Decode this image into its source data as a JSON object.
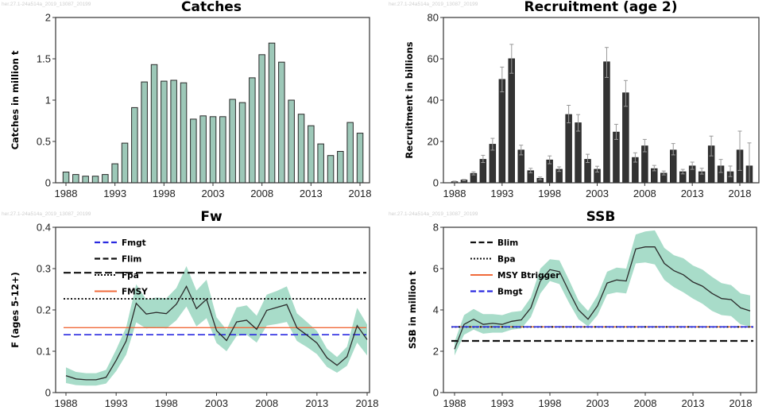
{
  "watermark": "her.27.1-24a514a_2019_13087_20199",
  "colors": {
    "bar_fill": "#9dc8b8",
    "bar_stroke": "#2a2a2a",
    "recruit_fill": "#333333",
    "error_bar": "#9a9a9a",
    "band_fill": "#a8dcc9",
    "line": "#2b2b2b",
    "blue": "#2a2ae0",
    "orange": "#f06a3a",
    "black": "#111111"
  },
  "chart_data": [
    {
      "id": "catches",
      "type": "bar",
      "title": "Catches",
      "xlabel": "",
      "ylabel": "Catches in million t",
      "ylim": [
        0,
        2
      ],
      "yticks": [
        "0",
        "0.5",
        "1",
        "1.5",
        "2"
      ],
      "ytick_values": [
        0,
        0.5,
        1,
        1.5,
        2
      ],
      "xticks": [
        "1988",
        "1993",
        "1998",
        "2003",
        "2008",
        "2013",
        "2018"
      ],
      "grid": false,
      "x": [
        1988,
        1989,
        1990,
        1991,
        1992,
        1993,
        1994,
        1995,
        1996,
        1997,
        1998,
        1999,
        2000,
        2001,
        2002,
        2003,
        2004,
        2005,
        2006,
        2007,
        2008,
        2009,
        2010,
        2011,
        2012,
        2013,
        2014,
        2015,
        2016,
        2017,
        2018
      ],
      "values": [
        0.13,
        0.1,
        0.08,
        0.08,
        0.1,
        0.23,
        0.48,
        0.91,
        1.22,
        1.43,
        1.23,
        1.24,
        1.21,
        0.77,
        0.81,
        0.8,
        0.8,
        1.01,
        0.97,
        1.27,
        1.55,
        1.69,
        1.46,
        1.0,
        0.83,
        0.69,
        0.47,
        0.33,
        0.38,
        0.73,
        0.6
      ]
    },
    {
      "id": "recruitment",
      "type": "bar",
      "title": "Recruitment (age 2)",
      "xlabel": "",
      "ylabel": "Recruitment in billions",
      "ylim": [
        0,
        80
      ],
      "yticks": [
        "0",
        "20",
        "40",
        "60",
        "80"
      ],
      "ytick_values": [
        0,
        20,
        40,
        60,
        80
      ],
      "xticks": [
        "1988",
        "1993",
        "1998",
        "2003",
        "2008",
        "2013",
        "2018"
      ],
      "grid": false,
      "x": [
        1988,
        1989,
        1990,
        1991,
        1992,
        1993,
        1994,
        1995,
        1996,
        1997,
        1998,
        1999,
        2000,
        2001,
        2002,
        2003,
        2004,
        2005,
        2006,
        2007,
        2008,
        2009,
        2010,
        2011,
        2012,
        2013,
        2014,
        2015,
        2016,
        2017,
        2018,
        2019
      ],
      "values": [
        0.5,
        1.3,
        4.5,
        11.3,
        18.6,
        50,
        60,
        15.8,
        5.8,
        2.1,
        11,
        6.5,
        33,
        29,
        11.3,
        6.5,
        58.5,
        24.5,
        43.5,
        12.2,
        17.8,
        6.8,
        4.6,
        15.8,
        5.3,
        8.1,
        5.3,
        17.8,
        8.1,
        5.3,
        15.8,
        8.1
      ],
      "low": [
        0.3,
        1.0,
        3.8,
        9.8,
        15.8,
        44,
        53,
        13.5,
        4.8,
        1.5,
        9.2,
        5.5,
        29,
        25,
        9.8,
        5.2,
        51,
        21,
        37,
        10,
        15,
        5.8,
        3.8,
        13.5,
        4.3,
        6.5,
        4.2,
        13,
        5,
        3,
        6,
        0
      ],
      "high": [
        0.8,
        1.6,
        5.3,
        13.3,
        21.5,
        56,
        67,
        18.2,
        7.0,
        2.8,
        13,
        7.7,
        37.5,
        33,
        13.8,
        8.0,
        65.5,
        28.3,
        49.5,
        14.5,
        21,
        8.4,
        5.7,
        19,
        6.5,
        10,
        7.0,
        22.6,
        11.3,
        8.1,
        25,
        19.3
      ]
    },
    {
      "id": "fw",
      "type": "line",
      "title": "Fw",
      "xlabel": "",
      "ylabel": "F (ages 5-12+)",
      "ylim": [
        0,
        0.4
      ],
      "yticks": [
        "0",
        "0.1",
        "0.2",
        "0.3",
        "0.4"
      ],
      "ytick_values": [
        0,
        0.1,
        0.2,
        0.3,
        0.4
      ],
      "xticks": [
        "1988",
        "1993",
        "1998",
        "2003",
        "2008",
        "2013",
        "2018"
      ],
      "grid": false,
      "legend_position": "top-left",
      "x": [
        1988,
        1989,
        1990,
        1991,
        1992,
        1993,
        1994,
        1995,
        1996,
        1997,
        1998,
        1999,
        2000,
        2001,
        2002,
        2003,
        2004,
        2005,
        2006,
        2007,
        2008,
        2009,
        2010,
        2011,
        2012,
        2013,
        2014,
        2015,
        2016,
        2017,
        2018
      ],
      "values": [
        0.041,
        0.033,
        0.031,
        0.031,
        0.037,
        0.078,
        0.125,
        0.216,
        0.19,
        0.194,
        0.191,
        0.214,
        0.257,
        0.203,
        0.226,
        0.15,
        0.126,
        0.171,
        0.175,
        0.153,
        0.199,
        0.206,
        0.213,
        0.157,
        0.139,
        0.12,
        0.084,
        0.066,
        0.087,
        0.162,
        0.128
      ],
      "low": [
        0.023,
        0.018,
        0.017,
        0.017,
        0.022,
        0.052,
        0.092,
        0.17,
        0.155,
        0.158,
        0.155,
        0.175,
        0.208,
        0.16,
        0.18,
        0.12,
        0.1,
        0.137,
        0.14,
        0.121,
        0.162,
        0.166,
        0.171,
        0.125,
        0.11,
        0.093,
        0.062,
        0.048,
        0.065,
        0.121,
        0.09
      ],
      "high": [
        0.061,
        0.05,
        0.047,
        0.047,
        0.055,
        0.104,
        0.158,
        0.262,
        0.225,
        0.23,
        0.228,
        0.253,
        0.306,
        0.247,
        0.273,
        0.182,
        0.152,
        0.206,
        0.211,
        0.186,
        0.237,
        0.246,
        0.257,
        0.192,
        0.171,
        0.149,
        0.106,
        0.086,
        0.111,
        0.205,
        0.165
      ],
      "reference_lines": [
        {
          "name": "Fmgt",
          "value": 0.14,
          "style": "dashed",
          "color": "#2a2ae0"
        },
        {
          "name": "Flim",
          "value": 0.29,
          "style": "dashed",
          "color": "#111111"
        },
        {
          "name": "Fpa",
          "value": 0.227,
          "style": "dotted",
          "color": "#111111"
        },
        {
          "name": "FMSY",
          "value": 0.157,
          "style": "solid",
          "color": "#f06a3a"
        }
      ]
    },
    {
      "id": "ssb",
      "type": "line",
      "title": "SSB",
      "xlabel": "",
      "ylabel": "SSB in million t",
      "ylim": [
        0,
        8
      ],
      "yticks": [
        "0",
        "2",
        "4",
        "6",
        "8"
      ],
      "ytick_values": [
        0,
        2,
        4,
        6,
        8
      ],
      "xticks": [
        "1988",
        "1993",
        "1998",
        "2003",
        "2008",
        "2013",
        "2018"
      ],
      "grid": false,
      "legend_position": "top-left",
      "x": [
        1988,
        1989,
        1990,
        1991,
        1992,
        1993,
        1994,
        1995,
        1996,
        1997,
        1998,
        1999,
        2000,
        2001,
        2002,
        2003,
        2004,
        2005,
        2006,
        2007,
        2008,
        2009,
        2010,
        2011,
        2012,
        2013,
        2014,
        2015,
        2016,
        2017,
        2018,
        2019
      ],
      "values": [
        2.1,
        3.3,
        3.55,
        3.3,
        3.35,
        3.3,
        3.45,
        3.52,
        4.1,
        5.4,
        5.95,
        5.85,
        4.9,
        4.0,
        3.55,
        4.2,
        5.3,
        5.45,
        5.4,
        6.95,
        7.05,
        7.05,
        6.25,
        5.9,
        5.7,
        5.35,
        5.15,
        4.8,
        4.55,
        4.5,
        4.1,
        3.95
      ],
      "low": [
        1.8,
        2.8,
        3.05,
        2.85,
        2.9,
        2.9,
        3.05,
        3.1,
        3.65,
        4.8,
        5.4,
        5.25,
        4.35,
        3.55,
        3.2,
        3.75,
        4.75,
        4.85,
        4.8,
        6.25,
        6.3,
        6.2,
        5.45,
        5.1,
        4.85,
        4.55,
        4.3,
        3.95,
        3.75,
        3.7,
        3.3,
        3.2
      ],
      "high": [
        2.45,
        3.75,
        4.05,
        3.8,
        3.8,
        3.75,
        3.9,
        3.95,
        4.6,
        6.0,
        6.45,
        6.4,
        5.45,
        4.45,
        3.95,
        4.7,
        5.85,
        6.05,
        6.0,
        7.65,
        7.8,
        7.85,
        7.0,
        6.65,
        6.5,
        6.15,
        5.95,
        5.6,
        5.3,
        5.2,
        4.8,
        4.7
      ],
      "reference_lines": [
        {
          "name": "Blim",
          "value": 2.5,
          "style": "dashed",
          "color": "#111111"
        },
        {
          "name": "Bpa",
          "value": 3.18,
          "style": "dotted",
          "color": "#111111"
        },
        {
          "name": "MSY Btrigger",
          "value": 3.18,
          "style": "solid",
          "color": "#f06a3a"
        },
        {
          "name": "Bmgt",
          "value": 3.18,
          "style": "dashed",
          "color": "#2a2ae0"
        }
      ]
    }
  ]
}
